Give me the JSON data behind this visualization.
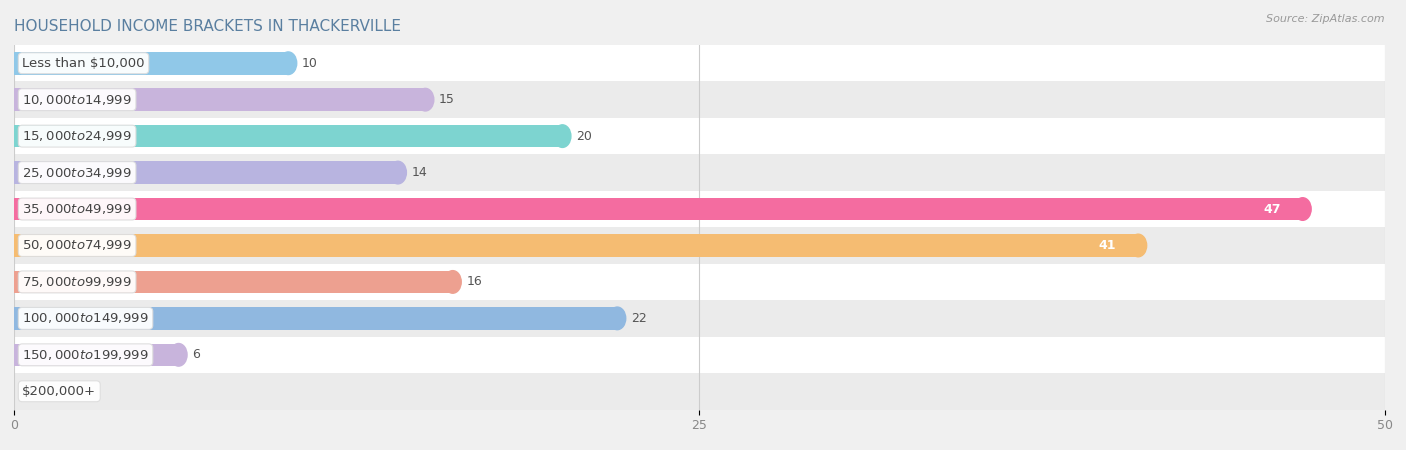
{
  "title": "HOUSEHOLD INCOME BRACKETS IN THACKERVILLE",
  "source": "Source: ZipAtlas.com",
  "categories": [
    "Less than $10,000",
    "$10,000 to $14,999",
    "$15,000 to $24,999",
    "$25,000 to $34,999",
    "$35,000 to $49,999",
    "$50,000 to $74,999",
    "$75,000 to $99,999",
    "$100,000 to $149,999",
    "$150,000 to $199,999",
    "$200,000+"
  ],
  "values": [
    10,
    15,
    20,
    14,
    47,
    41,
    16,
    22,
    6,
    0
  ],
  "bar_colors": [
    "#90c8e8",
    "#c8b4dc",
    "#7dd4d0",
    "#b8b4e0",
    "#f46ca0",
    "#f5bc72",
    "#eda090",
    "#90b8e0",
    "#c8b4dc",
    "#88d4d0"
  ],
  "xlim": [
    0,
    50
  ],
  "xticks": [
    0,
    25,
    50
  ],
  "background_color": "#f0f0f0",
  "row_bg_light": "#ffffff",
  "row_bg_dark": "#ebebeb",
  "title_fontsize": 11,
  "label_fontsize": 9.5,
  "value_fontsize": 9,
  "bar_height": 0.62,
  "label_text_color": "#444444",
  "value_color_inside": "#ffffff",
  "value_color_outside": "#555555",
  "title_color": "#5a7fa0",
  "source_color": "#999999"
}
